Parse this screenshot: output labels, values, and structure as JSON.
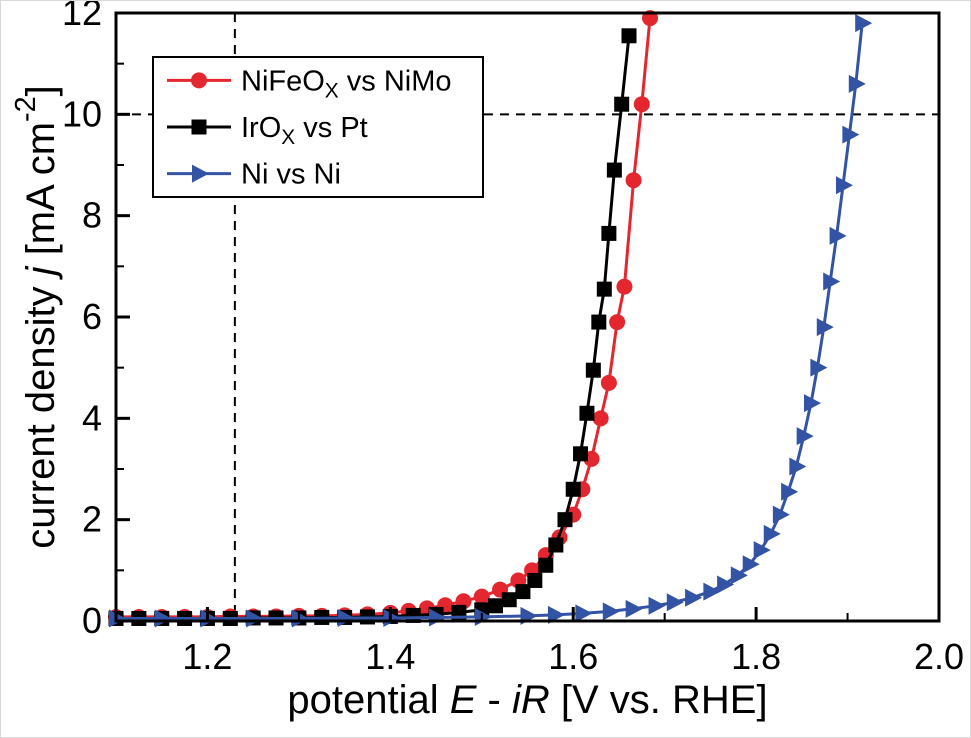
{
  "figure": {
    "background": "#ffffff",
    "axis_color": "#000000"
  },
  "chart_data": {
    "type": "line",
    "title": "",
    "xlabel": "potential E - iR [V vs. RHE]",
    "ylabel": "current density j [mA cm-2]",
    "xlabel_segments": [
      {
        "t": "potential "
      },
      {
        "t": "E",
        "italic": true
      },
      {
        "t": " - "
      },
      {
        "t": "iR",
        "italic": true
      },
      {
        "t": " [V vs. RHE]"
      }
    ],
    "ylabel_segments": [
      {
        "t": "current density "
      },
      {
        "t": "j",
        "italic": true
      },
      {
        "t": " [mA cm"
      },
      {
        "t": "-2",
        "sup": true
      },
      {
        "t": "]"
      }
    ],
    "xlim": [
      1.1,
      2.0
    ],
    "ylim": [
      0,
      12
    ],
    "x_ticks": {
      "major": [
        1.2,
        1.4,
        1.6,
        1.8,
        2.0
      ],
      "minor": [
        1.3,
        1.5,
        1.7,
        1.9
      ],
      "labels": [
        "1.2",
        "1.4",
        "1.6",
        "1.8",
        "2.0"
      ]
    },
    "y_ticks": {
      "major": [
        0,
        2,
        4,
        6,
        8,
        10,
        12
      ],
      "minor": [
        1,
        3,
        5,
        7,
        9,
        11
      ],
      "labels": [
        "0",
        "2",
        "4",
        "6",
        "8",
        "10",
        "12"
      ]
    },
    "grid": false,
    "legend_position": "top-left",
    "reference_lines": [
      {
        "orientation": "vertical",
        "x": 1.23,
        "style": "dashed",
        "color": "#000000"
      },
      {
        "orientation": "horizontal",
        "y": 10,
        "style": "dashed",
        "color": "#000000"
      }
    ],
    "series": [
      {
        "name": "NiFeOx vs NiMo",
        "label_segments": [
          {
            "t": "NiFeO"
          },
          {
            "t": "X",
            "sub": true
          },
          {
            "t": " vs NiMo"
          }
        ],
        "color": "#e4272e",
        "marker": "circle",
        "points": [
          [
            1.1,
            0.08
          ],
          [
            1.125,
            0.08
          ],
          [
            1.15,
            0.08
          ],
          [
            1.175,
            0.08
          ],
          [
            1.2,
            0.08
          ],
          [
            1.225,
            0.09
          ],
          [
            1.25,
            0.09
          ],
          [
            1.275,
            0.09
          ],
          [
            1.3,
            0.1
          ],
          [
            1.325,
            0.1
          ],
          [
            1.35,
            0.11
          ],
          [
            1.375,
            0.13
          ],
          [
            1.4,
            0.16
          ],
          [
            1.42,
            0.2
          ],
          [
            1.44,
            0.25
          ],
          [
            1.46,
            0.31
          ],
          [
            1.48,
            0.39
          ],
          [
            1.5,
            0.48
          ],
          [
            1.52,
            0.62
          ],
          [
            1.54,
            0.8
          ],
          [
            1.555,
            1.0
          ],
          [
            1.57,
            1.3
          ],
          [
            1.585,
            1.65
          ],
          [
            1.6,
            2.1
          ],
          [
            1.61,
            2.6
          ],
          [
            1.62,
            3.2
          ],
          [
            1.63,
            4.0
          ],
          [
            1.639,
            4.7
          ],
          [
            1.648,
            5.9
          ],
          [
            1.656,
            6.6
          ],
          [
            1.666,
            8.7
          ],
          [
            1.675,
            10.2
          ],
          [
            1.684,
            11.9
          ]
        ]
      },
      {
        "name": "IrOx vs Pt",
        "label_segments": [
          {
            "t": "IrO"
          },
          {
            "t": "X",
            "sub": true
          },
          {
            "t": " vs Pt"
          }
        ],
        "color": "#000000",
        "marker": "square",
        "points": [
          [
            1.1,
            0.05
          ],
          [
            1.125,
            0.05
          ],
          [
            1.15,
            0.05
          ],
          [
            1.175,
            0.05
          ],
          [
            1.2,
            0.05
          ],
          [
            1.225,
            0.05
          ],
          [
            1.25,
            0.06
          ],
          [
            1.275,
            0.06
          ],
          [
            1.3,
            0.06
          ],
          [
            1.325,
            0.07
          ],
          [
            1.35,
            0.07
          ],
          [
            1.375,
            0.08
          ],
          [
            1.4,
            0.09
          ],
          [
            1.425,
            0.11
          ],
          [
            1.45,
            0.13
          ],
          [
            1.475,
            0.17
          ],
          [
            1.5,
            0.22
          ],
          [
            1.515,
            0.3
          ],
          [
            1.53,
            0.42
          ],
          [
            1.545,
            0.58
          ],
          [
            1.558,
            0.8
          ],
          [
            1.57,
            1.1
          ],
          [
            1.581,
            1.5
          ],
          [
            1.591,
            2.0
          ],
          [
            1.6,
            2.6
          ],
          [
            1.608,
            3.3
          ],
          [
            1.615,
            4.1
          ],
          [
            1.622,
            4.95
          ],
          [
            1.628,
            5.9
          ],
          [
            1.634,
            6.55
          ],
          [
            1.639,
            7.65
          ],
          [
            1.645,
            8.9
          ],
          [
            1.653,
            10.2
          ],
          [
            1.661,
            11.55
          ]
        ]
      },
      {
        "name": "Ni vs Ni",
        "label_segments": [
          {
            "t": "Ni vs Ni"
          }
        ],
        "color": "#3353a4",
        "marker": "triangle-right",
        "points": [
          [
            1.1,
            0.05
          ],
          [
            1.15,
            0.05
          ],
          [
            1.2,
            0.05
          ],
          [
            1.25,
            0.05
          ],
          [
            1.3,
            0.05
          ],
          [
            1.35,
            0.06
          ],
          [
            1.4,
            0.06
          ],
          [
            1.45,
            0.07
          ],
          [
            1.5,
            0.08
          ],
          [
            1.55,
            0.1
          ],
          [
            1.58,
            0.12
          ],
          [
            1.61,
            0.15
          ],
          [
            1.64,
            0.19
          ],
          [
            1.665,
            0.24
          ],
          [
            1.69,
            0.3
          ],
          [
            1.71,
            0.37
          ],
          [
            1.73,
            0.46
          ],
          [
            1.75,
            0.58
          ],
          [
            1.765,
            0.72
          ],
          [
            1.78,
            0.9
          ],
          [
            1.793,
            1.12
          ],
          [
            1.805,
            1.4
          ],
          [
            1.816,
            1.72
          ],
          [
            1.826,
            2.1
          ],
          [
            1.835,
            2.55
          ],
          [
            1.844,
            3.05
          ],
          [
            1.852,
            3.65
          ],
          [
            1.86,
            4.3
          ],
          [
            1.867,
            5.0
          ],
          [
            1.874,
            5.8
          ],
          [
            1.881,
            6.7
          ],
          [
            1.888,
            7.6
          ],
          [
            1.895,
            8.6
          ],
          [
            1.902,
            9.6
          ],
          [
            1.909,
            10.6
          ],
          [
            1.916,
            11.8
          ]
        ]
      }
    ]
  }
}
